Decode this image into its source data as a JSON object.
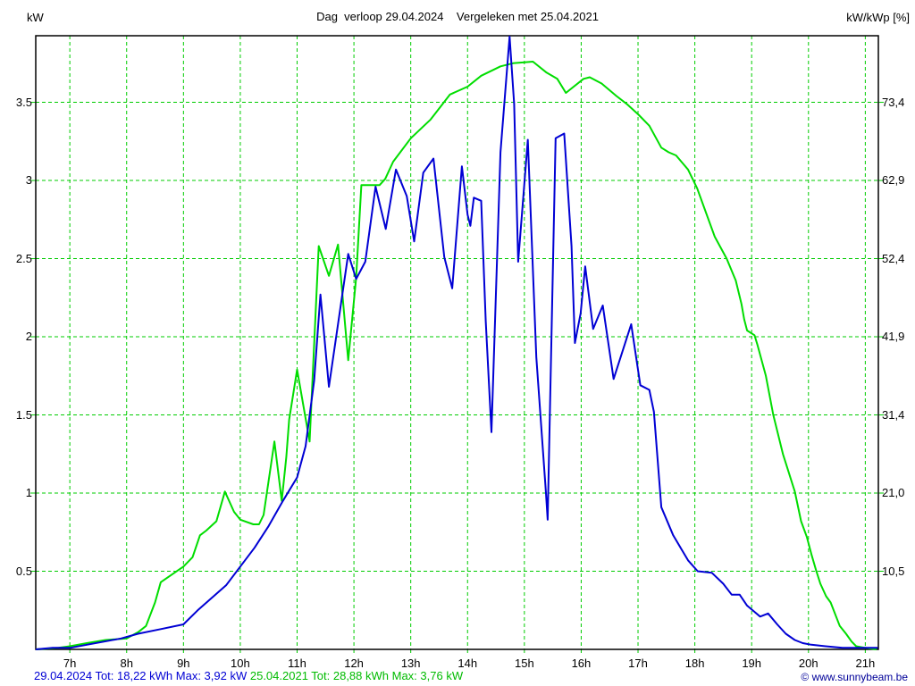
{
  "title": "Dag  verloop 29.04.2024    Vergeleken met 25.04.2021",
  "axes": {
    "left_unit": "kW",
    "right_unit": "kW/kWp [%]",
    "y_ticks": [
      {
        "v": 0.5,
        "left": "0.5",
        "right": "10,5"
      },
      {
        "v": 1.0,
        "left": "1",
        "right": "21,0"
      },
      {
        "v": 1.5,
        "left": "1.5",
        "right": "31,4"
      },
      {
        "v": 2.0,
        "left": "2",
        "right": "41,9"
      },
      {
        "v": 2.5,
        "left": "2.5",
        "right": "52,4"
      },
      {
        "v": 3.0,
        "left": "3",
        "right": "62,9"
      },
      {
        "v": 3.5,
        "left": "3.5",
        "right": "73,4"
      }
    ],
    "x_ticks": [
      {
        "t": 7,
        "label": "7h"
      },
      {
        "t": 8,
        "label": "8h"
      },
      {
        "t": 9,
        "label": "9h"
      },
      {
        "t": 10,
        "label": "10h"
      },
      {
        "t": 11,
        "label": "11h"
      },
      {
        "t": 12,
        "label": "12h"
      },
      {
        "t": 13,
        "label": "13h"
      },
      {
        "t": 14,
        "label": "14h"
      },
      {
        "t": 15,
        "label": "15h"
      },
      {
        "t": 16,
        "label": "16h"
      },
      {
        "t": 17,
        "label": "17h"
      },
      {
        "t": 18,
        "label": "18h"
      },
      {
        "t": 19,
        "label": "19h"
      },
      {
        "t": 20,
        "label": "20h"
      },
      {
        "t": 21,
        "label": "21h"
      }
    ]
  },
  "footer": {
    "series1": "29.04.2024 Tot: 18,22 kWh Max: 3,92 kW",
    "series2": "25.04.2021 Tot: 28,88 kWh Max: 3,76 kW",
    "copyright": "© www.sunnybeam.be"
  },
  "colors": {
    "series1": "#0000d4",
    "series2": "#00dd00",
    "grid": "#00cc00",
    "axis": "#000000",
    "footer_series2": "#00bb00",
    "copyright": "#000099",
    "background": "#ffffff"
  },
  "chart_data": {
    "type": "line",
    "title": "Dag verloop 29.04.2024 Vergeleken met 25.04.2021",
    "x_unit": "hour_of_day",
    "y_unit": "kW",
    "xlim": [
      6.4,
      21.23
    ],
    "ylim": [
      0,
      3.926
    ],
    "grid": true,
    "legend_position": "footer",
    "series": [
      {
        "name": "29.04.2024",
        "color_key": "series1",
        "total_kwh": "18,22",
        "max_kw": "3,92",
        "points": [
          [
            6.4,
            0.0
          ],
          [
            6.7,
            0.01
          ],
          [
            7.0,
            0.01
          ],
          [
            7.3,
            0.03
          ],
          [
            7.6,
            0.05
          ],
          [
            7.9,
            0.07
          ],
          [
            8.2,
            0.1
          ],
          [
            8.6,
            0.13
          ],
          [
            9.0,
            0.16
          ],
          [
            9.25,
            0.25
          ],
          [
            9.5,
            0.33
          ],
          [
            9.75,
            0.41
          ],
          [
            10.0,
            0.53
          ],
          [
            10.25,
            0.65
          ],
          [
            10.5,
            0.79
          ],
          [
            10.75,
            0.95
          ],
          [
            11.0,
            1.1
          ],
          [
            11.15,
            1.3
          ],
          [
            11.3,
            1.72
          ],
          [
            11.41,
            2.27
          ],
          [
            11.56,
            1.68
          ],
          [
            11.9,
            2.53
          ],
          [
            12.04,
            2.37
          ],
          [
            12.2,
            2.48
          ],
          [
            12.38,
            2.96
          ],
          [
            12.56,
            2.69
          ],
          [
            12.74,
            3.07
          ],
          [
            12.93,
            2.9
          ],
          [
            13.06,
            2.61
          ],
          [
            13.22,
            3.05
          ],
          [
            13.4,
            3.14
          ],
          [
            13.59,
            2.51
          ],
          [
            13.73,
            2.31
          ],
          [
            13.9,
            3.09
          ],
          [
            14.0,
            2.78
          ],
          [
            14.05,
            2.71
          ],
          [
            14.11,
            2.89
          ],
          [
            14.24,
            2.87
          ],
          [
            14.32,
            2.1
          ],
          [
            14.42,
            1.39
          ],
          [
            14.58,
            3.18
          ],
          [
            14.74,
            3.92
          ],
          [
            14.82,
            3.49
          ],
          [
            14.89,
            2.48
          ],
          [
            15.06,
            3.26
          ],
          [
            15.21,
            1.87
          ],
          [
            15.38,
            1.0
          ],
          [
            15.41,
            0.83
          ],
          [
            15.55,
            3.27
          ],
          [
            15.7,
            3.3
          ],
          [
            15.83,
            2.58
          ],
          [
            15.89,
            1.96
          ],
          [
            15.99,
            2.15
          ],
          [
            16.07,
            2.45
          ],
          [
            16.21,
            2.05
          ],
          [
            16.38,
            2.2
          ],
          [
            16.57,
            1.73
          ],
          [
            16.88,
            2.08
          ],
          [
            17.04,
            1.69
          ],
          [
            17.2,
            1.66
          ],
          [
            17.28,
            1.52
          ],
          [
            17.41,
            0.91
          ],
          [
            17.62,
            0.73
          ],
          [
            17.88,
            0.57
          ],
          [
            18.05,
            0.5
          ],
          [
            18.3,
            0.49
          ],
          [
            18.5,
            0.42
          ],
          [
            18.65,
            0.35
          ],
          [
            18.79,
            0.35
          ],
          [
            18.92,
            0.28
          ],
          [
            19.05,
            0.24
          ],
          [
            19.15,
            0.21
          ],
          [
            19.29,
            0.23
          ],
          [
            19.45,
            0.16
          ],
          [
            19.6,
            0.1
          ],
          [
            19.76,
            0.06
          ],
          [
            19.9,
            0.04
          ],
          [
            20.05,
            0.03
          ],
          [
            20.3,
            0.02
          ],
          [
            20.6,
            0.01
          ],
          [
            21.0,
            0.01
          ],
          [
            21.22,
            0.01
          ]
        ]
      },
      {
        "name": "25.04.2021",
        "color_key": "series2",
        "total_kwh": "28,88",
        "max_kw": "3,76",
        "points": [
          [
            6.4,
            0.0
          ],
          [
            6.8,
            0.01
          ],
          [
            7.0,
            0.02
          ],
          [
            7.3,
            0.04
          ],
          [
            7.63,
            0.06
          ],
          [
            8.0,
            0.07
          ],
          [
            8.2,
            0.11
          ],
          [
            8.34,
            0.15
          ],
          [
            8.5,
            0.3
          ],
          [
            8.6,
            0.43
          ],
          [
            9.0,
            0.53
          ],
          [
            9.16,
            0.59
          ],
          [
            9.29,
            0.73
          ],
          [
            9.4,
            0.76
          ],
          [
            9.58,
            0.82
          ],
          [
            9.73,
            1.01
          ],
          [
            9.89,
            0.88
          ],
          [
            10.0,
            0.83
          ],
          [
            10.23,
            0.8
          ],
          [
            10.33,
            0.8
          ],
          [
            10.41,
            0.86
          ],
          [
            10.6,
            1.33
          ],
          [
            10.73,
            0.95
          ],
          [
            10.81,
            1.23
          ],
          [
            10.86,
            1.47
          ],
          [
            11.0,
            1.79
          ],
          [
            11.22,
            1.33
          ],
          [
            11.38,
            2.58
          ],
          [
            11.56,
            2.39
          ],
          [
            11.72,
            2.59
          ],
          [
            11.9,
            1.85
          ],
          [
            12.04,
            2.38
          ],
          [
            12.13,
            2.97
          ],
          [
            12.45,
            2.97
          ],
          [
            12.55,
            3.01
          ],
          [
            12.69,
            3.12
          ],
          [
            13.0,
            3.27
          ],
          [
            13.35,
            3.39
          ],
          [
            13.69,
            3.55
          ],
          [
            14.0,
            3.6
          ],
          [
            14.24,
            3.67
          ],
          [
            14.58,
            3.73
          ],
          [
            14.8,
            3.75
          ],
          [
            15.15,
            3.76
          ],
          [
            15.39,
            3.69
          ],
          [
            15.58,
            3.65
          ],
          [
            15.73,
            3.56
          ],
          [
            16.04,
            3.65
          ],
          [
            16.15,
            3.66
          ],
          [
            16.36,
            3.62
          ],
          [
            16.62,
            3.54
          ],
          [
            16.8,
            3.49
          ],
          [
            17.01,
            3.42
          ],
          [
            17.2,
            3.35
          ],
          [
            17.41,
            3.21
          ],
          [
            17.54,
            3.18
          ],
          [
            17.67,
            3.16
          ],
          [
            17.88,
            3.07
          ],
          [
            18.04,
            2.95
          ],
          [
            18.19,
            2.8
          ],
          [
            18.35,
            2.64
          ],
          [
            18.56,
            2.5
          ],
          [
            18.72,
            2.36
          ],
          [
            18.82,
            2.21
          ],
          [
            18.87,
            2.11
          ],
          [
            18.92,
            2.04
          ],
          [
            19.05,
            2.01
          ],
          [
            19.1,
            1.95
          ],
          [
            19.25,
            1.75
          ],
          [
            19.38,
            1.5
          ],
          [
            19.55,
            1.25
          ],
          [
            19.76,
            1.01
          ],
          [
            19.87,
            0.82
          ],
          [
            19.97,
            0.72
          ],
          [
            20.05,
            0.61
          ],
          [
            20.13,
            0.51
          ],
          [
            20.21,
            0.42
          ],
          [
            20.31,
            0.34
          ],
          [
            20.39,
            0.3
          ],
          [
            20.55,
            0.15
          ],
          [
            20.66,
            0.1
          ],
          [
            20.76,
            0.05
          ],
          [
            20.84,
            0.02
          ],
          [
            21.0,
            0.01
          ],
          [
            21.2,
            0.0
          ]
        ]
      }
    ]
  }
}
